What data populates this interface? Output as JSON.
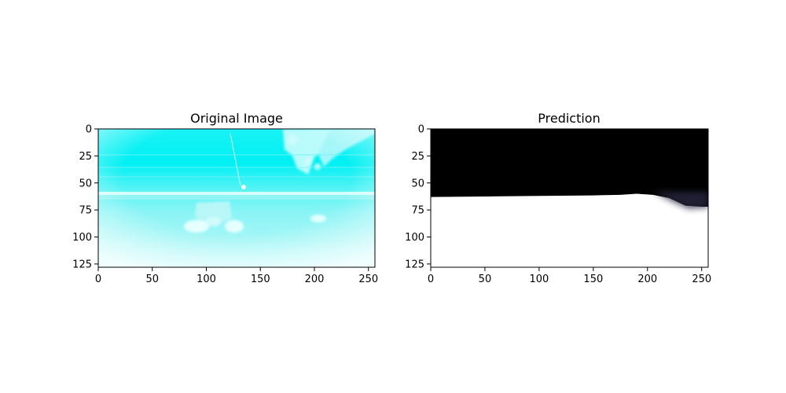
{
  "chart_data": [
    {
      "type": "heatmap",
      "title": "Original Image",
      "xlim": [
        0,
        256
      ],
      "ylim": [
        128,
        0
      ],
      "xticks": [
        0,
        50,
        100,
        150,
        200,
        250
      ],
      "yticks": [
        0,
        25,
        50,
        75,
        100,
        125
      ],
      "colors": {
        "base": "#00f4f4",
        "light": "#e6ffff"
      },
      "content": "cyan-tinted camera frame: water surface with a horizon band near y=62, bright objects near x=80-130, y=70-95 and foliage at the top right"
    },
    {
      "type": "heatmap",
      "title": "Prediction",
      "xlim": [
        0,
        256
      ],
      "ylim": [
        128,
        0
      ],
      "xticks": [
        0,
        50,
        100,
        150,
        200,
        250
      ],
      "yticks": [
        0,
        25,
        50,
        75,
        100,
        125
      ],
      "colors": {
        "upper": "#000000",
        "lower": "#ffffff",
        "blur": "#2b2a44"
      },
      "boundary": [
        [
          0,
          63
        ],
        [
          50,
          62.5
        ],
        [
          100,
          62
        ],
        [
          150,
          61.5
        ],
        [
          175,
          61
        ],
        [
          190,
          60
        ],
        [
          205,
          61
        ],
        [
          220,
          64
        ],
        [
          235,
          71
        ],
        [
          250,
          72
        ],
        [
          256,
          72
        ]
      ]
    }
  ]
}
